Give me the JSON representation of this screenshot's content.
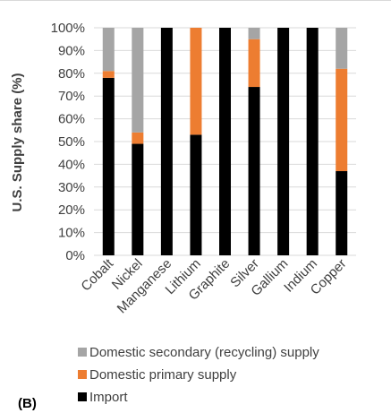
{
  "panel_label": "(B)",
  "chart_data": {
    "type": "bar",
    "stacked": true,
    "ylabel": "U.S. Supply share (%)",
    "ylim": [
      0,
      100
    ],
    "yticks": [
      "0%",
      "10%",
      "20%",
      "30%",
      "40%",
      "50%",
      "60%",
      "70%",
      "80%",
      "90%",
      "100%"
    ],
    "grid": true,
    "legend_position": "bottom",
    "categories": [
      "Cobalt",
      "Nickel",
      "Manganese",
      "Lithium",
      "Graphite",
      "Silver",
      "Gallium",
      "Indium",
      "Copper"
    ],
    "series": [
      {
        "name": "Import",
        "color": "#000000",
        "values": [
          78,
          49,
          100,
          53,
          100,
          74,
          100,
          100,
          37
        ]
      },
      {
        "name": "Domestic primary supply",
        "color": "#ed7d31",
        "values": [
          3,
          5,
          0,
          47,
          0,
          21,
          0,
          0,
          45
        ]
      },
      {
        "name": "Domestic secondary (recycling) supply",
        "color": "#a5a5a5",
        "values": [
          19,
          46,
          0,
          0,
          0,
          5,
          0,
          0,
          18
        ]
      }
    ],
    "legend_order": [
      "Domestic secondary (recycling) supply",
      "Domestic primary supply",
      "Import"
    ]
  }
}
